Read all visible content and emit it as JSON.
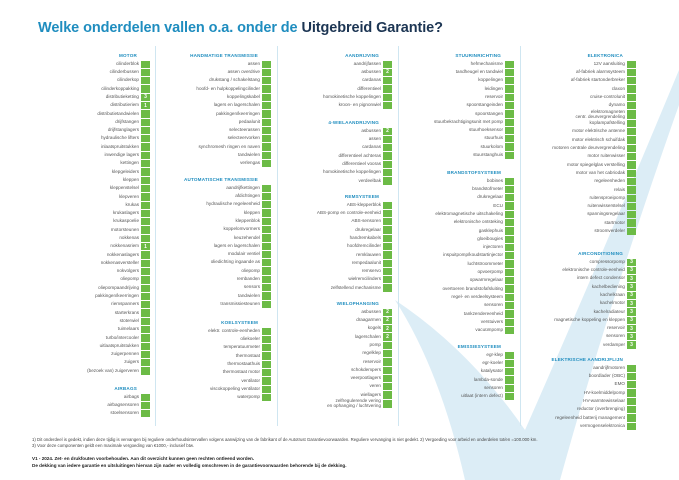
{
  "title": {
    "part1": "Welke onderdelen vallen o.a. onder de ",
    "part2": "Uitgebreid Garantie?"
  },
  "colors": {
    "accent": "#1f8dbf",
    "navy": "#1c3553",
    "check_box": "#6cbb46",
    "background_shape": "#dcedf6"
  },
  "columns": [
    {
      "sections": [
        {
          "title": "MOTOR",
          "items": [
            {
              "label": "cilinderblok"
            },
            {
              "label": "cilinderbussen"
            },
            {
              "label": "cilinderkop"
            },
            {
              "label": "cilinderkoppakking"
            },
            {
              "label": "distributieketting",
              "badge": "3"
            },
            {
              "label": "distributieriem",
              "badge": "1"
            },
            {
              "label": "distributietandwielen"
            },
            {
              "label": "drijfstangen"
            },
            {
              "label": "drijfstanglagers"
            },
            {
              "label": "hydraulische lifters"
            },
            {
              "label": "inlaatspruitstukken"
            },
            {
              "label": "inwendige lagers"
            },
            {
              "label": "kettingen"
            },
            {
              "label": "klepgeleiders"
            },
            {
              "label": "kleppen"
            },
            {
              "label": "kleppenstelsel"
            },
            {
              "label": "klepveren"
            },
            {
              "label": "krukas"
            },
            {
              "label": "krukaslagers"
            },
            {
              "label": "krukaspoelie"
            },
            {
              "label": "motorsteunen"
            },
            {
              "label": "nokkenas"
            },
            {
              "label": "nokkenasriem",
              "badge": "1"
            },
            {
              "label": "nokkenaslagers"
            },
            {
              "label": "nokkenasversteller"
            },
            {
              "label": "nokvolgers"
            },
            {
              "label": "oliepomp"
            },
            {
              "label": "oliepompaandrijving"
            },
            {
              "label": "pakkingen/keerringen"
            },
            {
              "label": "riemspanners"
            },
            {
              "label": "starterkrans"
            },
            {
              "label": "stoterwiel"
            },
            {
              "label": "tuimelaars"
            },
            {
              "label": "turbo/intercooler"
            },
            {
              "label": "uitlaatspruitstukken"
            },
            {
              "label": "zuigerpennen"
            },
            {
              "label": "zuigers"
            },
            {
              "label": "(bezoek van) zuigerveren"
            }
          ]
        },
        {
          "title": "AIRBAGS",
          "items": [
            {
              "label": "airbags"
            },
            {
              "label": "airbagsensoren"
            },
            {
              "label": "stoelsensoren"
            }
          ]
        }
      ]
    },
    {
      "sections": [
        {
          "title": "HANDMATIGE TRANSMISSIE",
          "items": [
            {
              "label": "assen"
            },
            {
              "label": "assen overdrive"
            },
            {
              "label": "drukstang / schakelstang"
            },
            {
              "label": "hoofd- en hulpkoppelingcilinder"
            },
            {
              "label": "koppelingskabel"
            },
            {
              "label": "lagers en lagerschalen"
            },
            {
              "label": "pakkingen/keerringen"
            },
            {
              "label": "pedaalunit"
            },
            {
              "label": "selecteerassen"
            },
            {
              "label": "selecteervorken"
            },
            {
              "label": "synchromesh ringen en naven"
            },
            {
              "label": "tandwielen"
            },
            {
              "label": "verlengas"
            }
          ]
        },
        {
          "title": "AUTOMATISCHE TRANSMISSIE",
          "items": [
            {
              "label": "aandrijfkettingen"
            },
            {
              "label": "afdichtingen"
            },
            {
              "label": "hydraulische regeleenheid"
            },
            {
              "label": "kleppen"
            },
            {
              "label": "kleppenblok"
            },
            {
              "label": "koppelomvormers"
            },
            {
              "label": "keuzehendel"
            },
            {
              "label": "lagers en lagerschalen"
            },
            {
              "label": "modulair ventiel"
            },
            {
              "label": "oliedichting ingaande as"
            },
            {
              "label": "oliepomp"
            },
            {
              "label": "rembanden"
            },
            {
              "label": "sensors"
            },
            {
              "label": "tandwielen"
            },
            {
              "label": "transmissiesteunen"
            }
          ]
        },
        {
          "title": "KOELSYSTEEM",
          "items": [
            {
              "label": "elektr. controle-eenheden"
            },
            {
              "label": "oliekoeler"
            },
            {
              "label": "temperatuurmeter"
            },
            {
              "label": "thermostaat"
            },
            {
              "label": "thermostaathuis"
            },
            {
              "label": "thermostaat motor"
            },
            {
              "label": "ventilator"
            },
            {
              "label": "viscokoppeling ventilator"
            },
            {
              "label": "waterpomp"
            }
          ]
        }
      ]
    },
    {
      "sections": [
        {
          "title": "AANDRIJVING",
          "items": [
            {
              "label": "aandrijfassen"
            },
            {
              "label": "asbussen",
              "badge": "2"
            },
            {
              "label": "cardanas"
            },
            {
              "label": "differentieel"
            },
            {
              "label": "homokinetische koppelingen"
            },
            {
              "label": "kroon- en pignonwiel"
            }
          ]
        },
        {
          "title": "4-WIELAANDRIJVING",
          "items": [
            {
              "label": "asbussen",
              "badge": "2"
            },
            {
              "label": "assen"
            },
            {
              "label": "cardanas"
            },
            {
              "label": "differentieel achteras"
            },
            {
              "label": "differentieel vooras"
            },
            {
              "label": "homokinetische koppelingen"
            },
            {
              "label": "verdeelbak"
            }
          ]
        },
        {
          "title": "REMSYSTEEM",
          "items": [
            {
              "label": "ABS-klepperblok"
            },
            {
              "label": "ABS-pomp en controle-eenheid"
            },
            {
              "label": "ABS-sensoren"
            },
            {
              "label": "drukregelaar"
            },
            {
              "label": "handremkabels"
            },
            {
              "label": "hoofdremcilinder"
            },
            {
              "label": "remklauwen"
            },
            {
              "label": "rempedaalunit"
            },
            {
              "label": "remservo"
            },
            {
              "label": "wielremcilinders"
            },
            {
              "label": "zelfstellend mechanisme"
            }
          ]
        },
        {
          "title": "WIELOPHANGING",
          "items": [
            {
              "label": "asbussen",
              "badge": "2"
            },
            {
              "label": "draagarmen",
              "badge": "2"
            },
            {
              "label": "kogels",
              "badge": "2"
            },
            {
              "label": "lagerschalen",
              "badge": "2"
            },
            {
              "label": "pomp"
            },
            {
              "label": "regelklep"
            },
            {
              "label": "reservoir"
            },
            {
              "label": "schokdempers"
            },
            {
              "label": "veerpootlagers"
            },
            {
              "label": "veren"
            },
            {
              "label": "wiellagers"
            },
            {
              "label": "zelfregulerende vering\nen ophanging / luchtvering"
            }
          ]
        }
      ]
    },
    {
      "sections": [
        {
          "title": "STUURINRICHTING",
          "items": [
            {
              "label": "hefmechanisme"
            },
            {
              "label": "tandheugel en tandwiel"
            },
            {
              "label": "koppelingen"
            },
            {
              "label": "leidingen"
            },
            {
              "label": "reservoir"
            },
            {
              "label": "spoorstangeinden"
            },
            {
              "label": "spoorstangen"
            },
            {
              "label": "stuurbekrachtigingsunit met pomp"
            },
            {
              "label": "stuurhoeksensor"
            },
            {
              "label": "stuurhuis"
            },
            {
              "label": "stuurkolom"
            },
            {
              "label": "stuurstanghuis"
            }
          ]
        },
        {
          "title": "BRANDSTOFSYSTEEM",
          "items": [
            {
              "label": "bobines"
            },
            {
              "label": "brandstofmeter"
            },
            {
              "label": "drukregelaar"
            },
            {
              "label": "ECU"
            },
            {
              "label": "elektromagnetische uitschakeling"
            },
            {
              "label": "elektronische ontsteking"
            },
            {
              "label": "gasklephuis"
            },
            {
              "label": "gloeibougies"
            },
            {
              "label": "injectoren"
            },
            {
              "label": "inspuitpomp/koudstartinjector"
            },
            {
              "label": "luchtstroommeter"
            },
            {
              "label": "opvoerpomp"
            },
            {
              "label": "opwarmregelaar"
            },
            {
              "label": "overtoeren brandstofafsluiting"
            },
            {
              "label": "regel- en verdeelsysteem"
            },
            {
              "label": "sensoren"
            },
            {
              "label": "tankzendereenheid"
            },
            {
              "label": "verstuivers"
            },
            {
              "label": "vacuümpomp"
            }
          ]
        },
        {
          "title": "EMISSIESYSTEEM",
          "items": [
            {
              "label": "egr-klep"
            },
            {
              "label": "egr-koeler"
            },
            {
              "label": "katalysator"
            },
            {
              "label": "lambda-sonde"
            },
            {
              "label": "sensoren"
            },
            {
              "label": "uitlaat (intern defect)"
            }
          ]
        }
      ]
    },
    {
      "sections": [
        {
          "title": "ELEKTRONICA",
          "items": [
            {
              "label": "12V aansluiting"
            },
            {
              "label": "af-fabriek alarmsysteem"
            },
            {
              "label": "af-fabriek startonderbreker"
            },
            {
              "label": "claxon"
            },
            {
              "label": "cruise-controlunit"
            },
            {
              "label": "dynamo"
            },
            {
              "label": "elektromagneten\ncentr. deurvergrendeling"
            },
            {
              "label": "koplampafstelling"
            },
            {
              "label": "motor elektrische antenne"
            },
            {
              "label": "motor elektrisch schuifdak"
            },
            {
              "label": "motoren centrale deurvergrendeling"
            },
            {
              "label": "motor ruitenwisser"
            },
            {
              "label": "motor spiegelglas verstelling"
            },
            {
              "label": "motor van het cabriodak"
            },
            {
              "label": "regeleenheden"
            },
            {
              "label": "relais"
            },
            {
              "label": "ruitensproeipomp"
            },
            {
              "label": "ruitenwisserstelsel"
            },
            {
              "label": "spanningsregelaar"
            },
            {
              "label": "startmotor"
            },
            {
              "label": "stroomverdeler"
            }
          ]
        },
        {
          "title": "AIRCONDITIONING",
          "items": [
            {
              "label": "compressorpomp",
              "badge": "3"
            },
            {
              "label": "elektronische controle-eenheid",
              "badge": "3"
            },
            {
              "label": "intern defect condensor",
              "badge": "3"
            },
            {
              "label": "kachelbediening",
              "badge": "3"
            },
            {
              "label": "kachelkraan",
              "badge": "3"
            },
            {
              "label": "kachelmotor",
              "badge": "3"
            },
            {
              "label": "kachelradiateur",
              "badge": "3"
            },
            {
              "label": "magnetische koppeling en kleppen",
              "badge": "3"
            },
            {
              "label": "reservoir",
              "badge": "3"
            },
            {
              "label": "sensoren",
              "badge": "3"
            },
            {
              "label": "verdamper",
              "badge": "3"
            }
          ]
        },
        {
          "title": "ELEKTRISCHE AANDRIJFLIJN",
          "items": [
            {
              "label": "aandrijfmotoren"
            },
            {
              "label": "boordlader (OBC)"
            },
            {
              "label": "EMO"
            },
            {
              "label": "HV-koelmiddelpomp"
            },
            {
              "label": "HV-warmtewisselaar"
            },
            {
              "label": "reductor (overbrenging)"
            },
            {
              "label": "regeleenheid batterij management"
            },
            {
              "label": "vermogenselektronica"
            }
          ]
        }
      ]
    }
  ],
  "footer": {
    "note1": "1) Dit onderdeel is gedekt, indien deze tijdig is vervangen bij reguliere onderhoudsintervallen volgens aanwijzing van de fabrikant of de Autotrust Garantievoorwaarden. Reguliere vervanging is niet gedekt. 2) Vergoeding voor arbeid en onderdelen tot/en =100.000 km.",
    "note2": "3) Voor deze componenten geldt een maximale vergoeding van €1000,- inclusief btw.",
    "disclaimer1": "V1 - 2024. Zet- en drukfouten voorbehouden. Aan dit overzicht kunnen geen rechten ontleend worden.",
    "disclaimer2": "De dekking van iedere garantie en uitsluitingen hiervan zijn nader en volledig omschreven in de garantievoorwaarden behorende bij de dekking."
  }
}
